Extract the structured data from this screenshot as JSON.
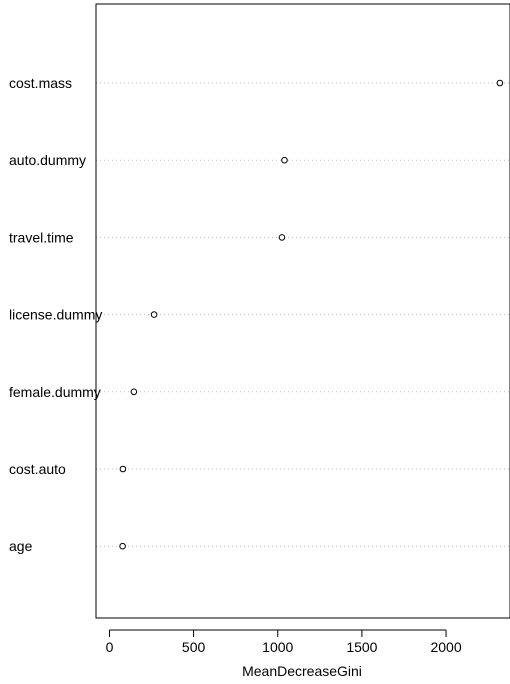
{
  "chart_data": {
    "type": "scatter",
    "title": "",
    "xlabel": "MeanDecreaseGini",
    "ylabel": "",
    "xlim": [
      -80,
      2380
    ],
    "xticks": [
      0,
      500,
      1000,
      1500,
      2000
    ],
    "grid": "dotted horizontal lines per variable",
    "points": [
      {
        "label": "cost.mass",
        "value": 2320
      },
      {
        "label": "auto.dummy",
        "value": 1040
      },
      {
        "label": "travel.time",
        "value": 1025
      },
      {
        "label": "license.dummy",
        "value": 265
      },
      {
        "label": "female.dummy",
        "value": 145
      },
      {
        "label": "cost.auto",
        "value": 80
      },
      {
        "label": "age",
        "value": 78
      }
    ]
  }
}
